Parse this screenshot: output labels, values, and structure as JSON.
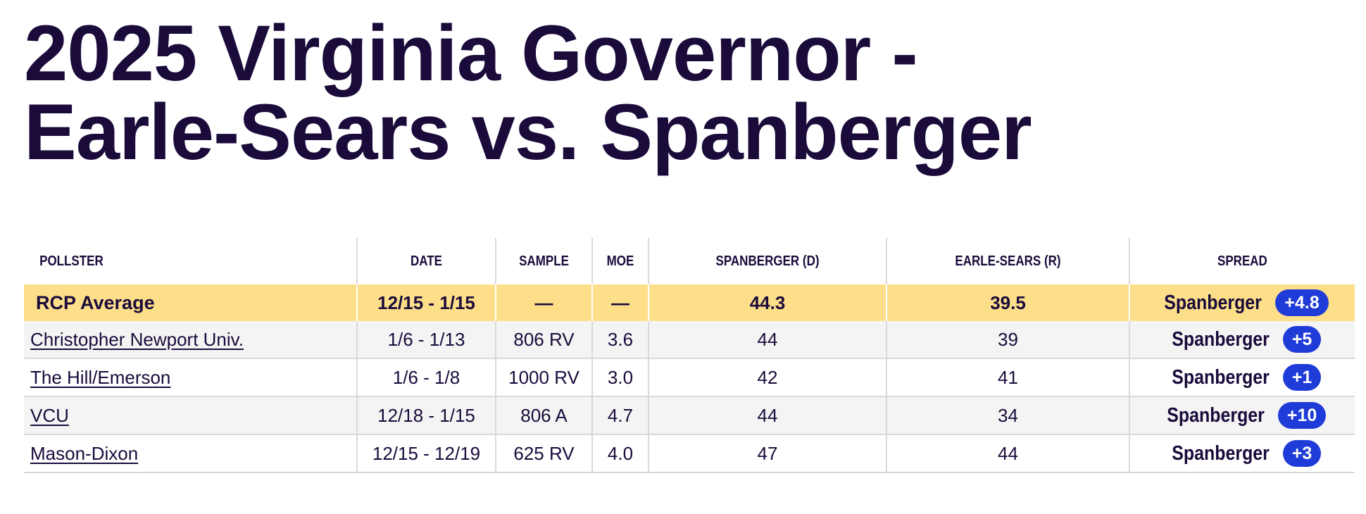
{
  "title": {
    "line1": "2025 Virginia Governor -",
    "line2": "Earle-Sears vs. Spanberger"
  },
  "table": {
    "headers": {
      "pollster": "POLLSTER",
      "date": "DATE",
      "sample": "SAMPLE",
      "moe": "MOE",
      "dem": "SPANBERGER (D)",
      "rep": "EARLE-SEARS (R)",
      "spread": "SPREAD"
    },
    "average": {
      "pollster": "RCP Average",
      "date": "12/15 - 1/15",
      "sample": "—",
      "moe": "—",
      "dem": "44.3",
      "rep": "39.5",
      "spread_name": "Spanberger",
      "spread_value": "+4.8"
    },
    "rows": [
      {
        "pollster": "Christopher Newport Univ.",
        "date": "1/6 - 1/13",
        "sample": "806 RV",
        "moe": "3.6",
        "dem": "44",
        "rep": "39",
        "spread_name": "Spanberger",
        "spread_value": "+5"
      },
      {
        "pollster": "The Hill/Emerson",
        "date": "1/6 - 1/8",
        "sample": "1000 RV",
        "moe": "3.0",
        "dem": "42",
        "rep": "41",
        "spread_name": "Spanberger",
        "spread_value": "+1"
      },
      {
        "pollster": "VCU",
        "date": "12/18 - 1/15",
        "sample": "806 A",
        "moe": "4.7",
        "dem": "44",
        "rep": "34",
        "spread_name": "Spanberger",
        "spread_value": "+10"
      },
      {
        "pollster": "Mason-Dixon",
        "date": "12/15 - 12/19",
        "sample": "625 RV",
        "moe": "4.0",
        "dem": "47",
        "rep": "44",
        "spread_name": "Spanberger",
        "spread_value": "+3"
      }
    ]
  },
  "colors": {
    "title_text": "#1a0b3b",
    "average_row_bg": "#fddf8a",
    "alt_row_bg": "#f4f4f4",
    "badge_bg": "#1f3bd8",
    "badge_text": "#ffffff"
  }
}
